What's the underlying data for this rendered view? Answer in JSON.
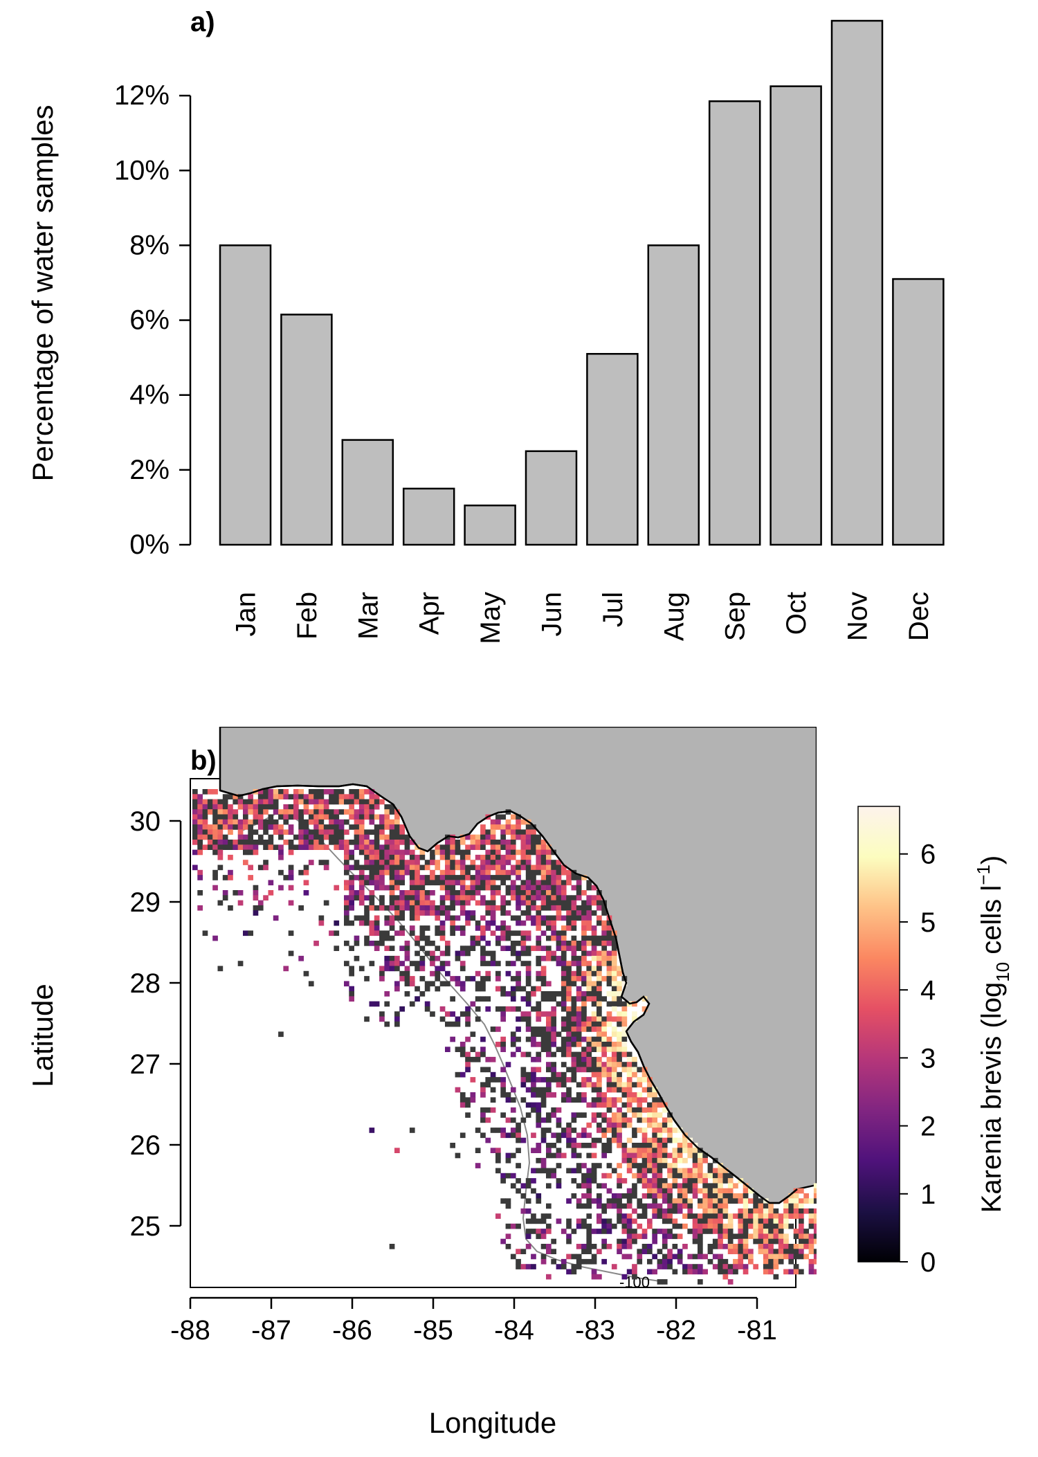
{
  "chart_data": [
    {
      "panel_label": "a)",
      "type": "bar",
      "ylabel": "Percentage of water samples",
      "ylim": [
        0,
        14
      ],
      "yticks": [
        0,
        2,
        4,
        6,
        8,
        10,
        12
      ],
      "ytick_labels": [
        "0%",
        "2%",
        "4%",
        "6%",
        "8%",
        "10%",
        "12%"
      ],
      "categories": [
        "Jan",
        "Feb",
        "Mar",
        "Apr",
        "May",
        "Jun",
        "Jul",
        "Aug",
        "Sep",
        "Oct",
        "Nov",
        "Dec"
      ],
      "values": [
        8.0,
        6.15,
        2.8,
        1.5,
        1.05,
        2.5,
        5.1,
        8.0,
        11.85,
        12.25,
        14.0,
        7.1
      ],
      "bar_color": "#bebebe",
      "grid": false
    },
    {
      "panel_label": "b)",
      "type": "heatmap",
      "xlabel": "Longitude",
      "ylabel": "Latitude",
      "xlim": [
        -88,
        -80.5
      ],
      "ylim": [
        24.3,
        30.5
      ],
      "xticks": [
        -88,
        -87,
        -86,
        -85,
        -84,
        -83,
        -82,
        -81
      ],
      "xtick_labels": [
        "-88",
        "-87",
        "-86",
        "-85",
        "-84",
        "-83",
        "-82",
        "-81"
      ],
      "yticks": [
        25,
        26,
        27,
        28,
        29,
        30
      ],
      "ytick_labels": [
        "25",
        "26",
        "27",
        "28",
        "29",
        "30"
      ],
      "contour_label": "-100",
      "colorbar": {
        "label": "Karenia brevis (log",
        "label_sub": "10",
        "label_end": " cells l",
        "label_sup": "−1",
        "label_close": ")",
        "range": [
          0,
          6.7
        ],
        "ticks": [
          0,
          1,
          2,
          3,
          4,
          5,
          6
        ],
        "tick_labels": [
          "0",
          "1",
          "2",
          "3",
          "4",
          "5",
          "6"
        ],
        "colors": [
          "#000004",
          "#1c1044",
          "#4f127b",
          "#812581",
          "#b5367a",
          "#e55064",
          "#fb8761",
          "#fec287",
          "#fcfdbf",
          "#fdf3ec"
        ]
      },
      "land_color": "#b3b3b3",
      "absent_sample_color": "#3a3a3a"
    }
  ]
}
